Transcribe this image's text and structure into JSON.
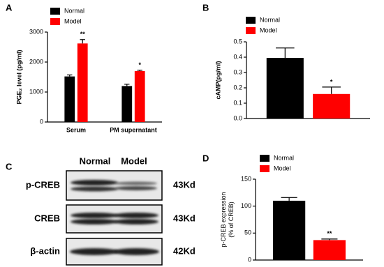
{
  "chart_data": [
    {
      "type": "bar",
      "panel": "A",
      "ylabel": "PGE₂ level (pg/ml)",
      "categories": [
        "Serum",
        "PM supernatant"
      ],
      "series": [
        {
          "name": "Normal",
          "color": "#000000",
          "values": [
            1520,
            1200
          ],
          "errors": [
            50,
            60
          ]
        },
        {
          "name": "Model",
          "color": "#ff0000",
          "values": [
            2620,
            1700
          ],
          "errors": [
            130,
            30
          ],
          "significance": [
            "**",
            "*"
          ]
        }
      ],
      "ylim": [
        0,
        3000
      ],
      "yticks": [
        0,
        1000,
        2000,
        3000
      ]
    },
    {
      "type": "bar",
      "panel": "B",
      "ylabel": "cAMP(pg/ml)",
      "categories": [
        null
      ],
      "series": [
        {
          "name": "Normal",
          "color": "#000000",
          "values": [
            0.395
          ],
          "errors": [
            0.065
          ]
        },
        {
          "name": "Model",
          "color": "#ff0000",
          "values": [
            0.16
          ],
          "errors": [
            0.045
          ],
          "significance": [
            "*"
          ]
        }
      ],
      "ylim": [
        0,
        0.5
      ],
      "yticks": [
        {
          "value": 0,
          "label": "0.0"
        },
        0.1,
        0.2,
        0.3,
        0.4,
        0.5
      ]
    },
    {
      "type": "bar",
      "panel": "D",
      "ylabel": [
        "p-CREB expression",
        "(% of CREB)"
      ],
      "categories": [
        null
      ],
      "series": [
        {
          "name": "Normal",
          "color": "#000000",
          "values": [
            110
          ],
          "errors": [
            6
          ]
        },
        {
          "name": "Model",
          "color": "#ff0000",
          "values": [
            37
          ],
          "errors": [
            2
          ],
          "significance": [
            "**"
          ]
        }
      ],
      "ylim": [
        0,
        150
      ],
      "yticks": [
        0,
        50,
        100,
        150
      ]
    }
  ],
  "blot": {
    "panel": "C",
    "lanes": [
      "Normal",
      "Model"
    ],
    "rows": [
      {
        "label": "p-CREB",
        "size": "43Kd"
      },
      {
        "label": "CREB",
        "size": "43Kd"
      },
      {
        "label": "β-actin",
        "size": "42Kd"
      }
    ]
  }
}
